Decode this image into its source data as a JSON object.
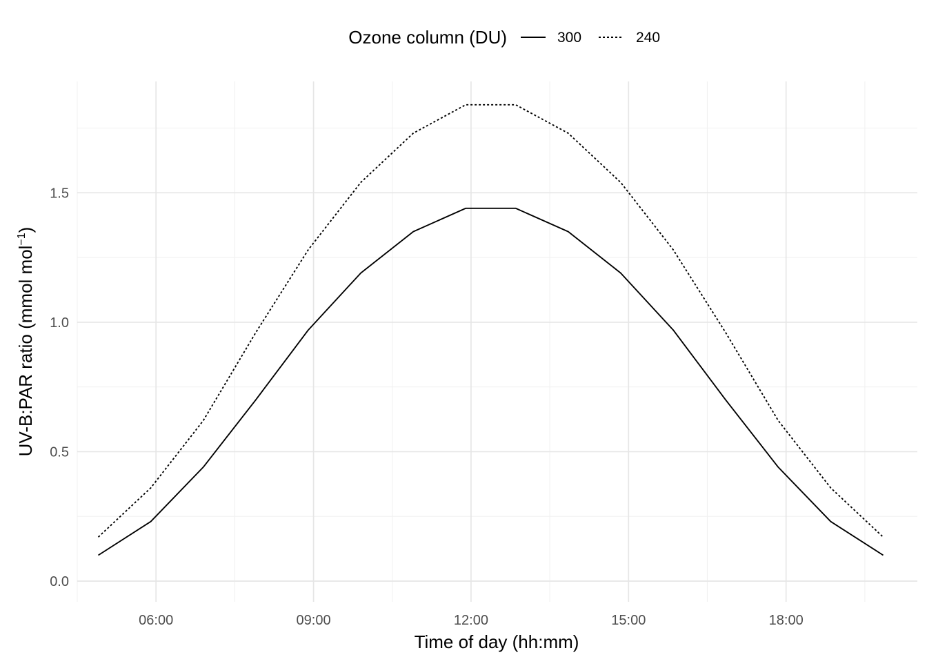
{
  "chart_data": {
    "type": "line",
    "xlabel": "Time of day (hh:mm)",
    "ylabel_main": "UV-B:PAR ratio (mmol mol",
    "ylabel_sup": "−1",
    "ylabel_close": ")",
    "x_ticks": [
      {
        "label": "06:00",
        "hours": 6
      },
      {
        "label": "09:00",
        "hours": 9
      },
      {
        "label": "12:00",
        "hours": 12
      },
      {
        "label": "15:00",
        "hours": 15
      },
      {
        "label": "18:00",
        "hours": 18
      }
    ],
    "y_ticks": [
      {
        "label": "0.0",
        "value": 0.0
      },
      {
        "label": "0.5",
        "value": 0.5
      },
      {
        "label": "1.0",
        "value": 1.0
      },
      {
        "label": "1.5",
        "value": 1.5
      }
    ],
    "xlim_hours": [
      4.5,
      20.5
    ],
    "ylim": [
      -0.08,
      1.93
    ],
    "legend": {
      "title": "Ozone column (DU)",
      "position": "top",
      "entries": [
        {
          "label": "300",
          "linetype": "solid"
        },
        {
          "label": "240",
          "linetype": "dotted"
        }
      ]
    },
    "grid": true,
    "x_hours": [
      4.9,
      5.9,
      6.9,
      7.9,
      8.9,
      9.9,
      10.9,
      11.9,
      12.85,
      13.85,
      14.85,
      15.85,
      16.85,
      17.85,
      18.85,
      19.85
    ],
    "series": [
      {
        "name": "300",
        "linetype": "solid",
        "values": [
          0.1,
          0.23,
          0.44,
          0.7,
          0.97,
          1.19,
          1.35,
          1.44,
          1.44,
          1.35,
          1.19,
          0.97,
          0.7,
          0.44,
          0.23,
          0.1
        ]
      },
      {
        "name": "240",
        "linetype": "dotted",
        "values": [
          0.17,
          0.36,
          0.62,
          0.96,
          1.28,
          1.54,
          1.73,
          1.84,
          1.84,
          1.73,
          1.54,
          1.28,
          0.96,
          0.62,
          0.36,
          0.17
        ]
      }
    ]
  }
}
